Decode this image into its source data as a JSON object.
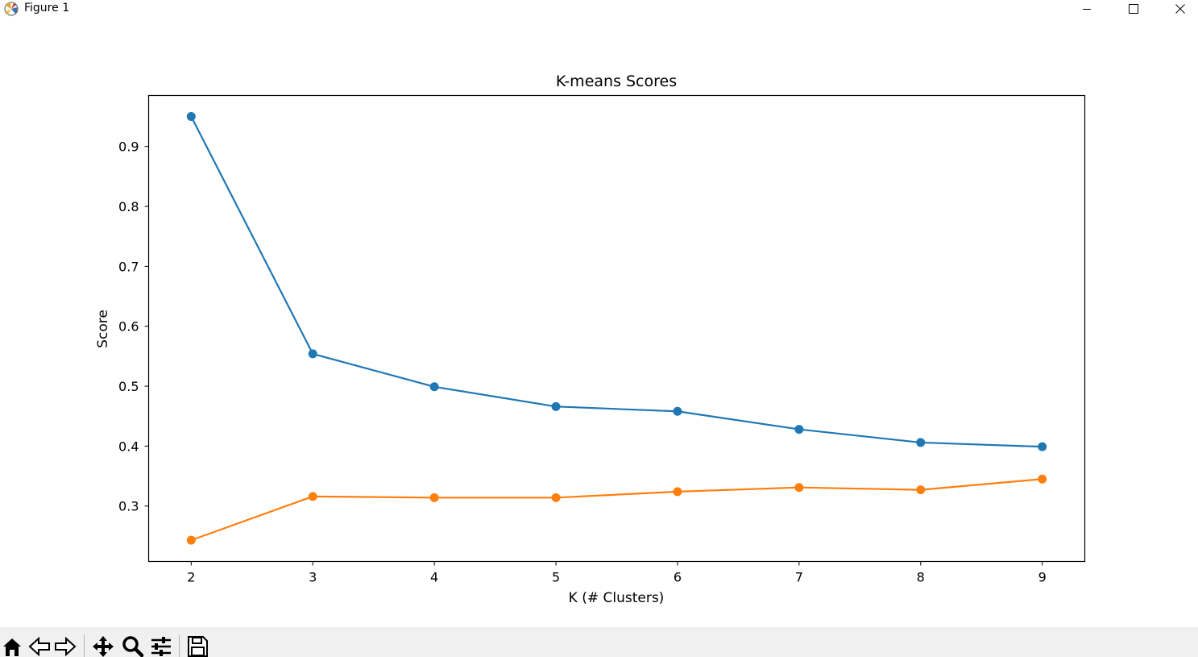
{
  "window": {
    "title": "Figure 1",
    "icon": "matplotlib-icon",
    "controls": [
      "minimize-icon",
      "maximize-icon",
      "close-icon"
    ]
  },
  "toolbar": {
    "buttons": [
      {
        "name": "home-icon"
      },
      {
        "name": "back-arrow-icon"
      },
      {
        "name": "forward-arrow-icon"
      },
      {
        "name": "pan-icon"
      },
      {
        "name": "zoom-icon"
      },
      {
        "name": "configure-subplots-icon"
      },
      {
        "name": "save-icon"
      }
    ]
  },
  "chart_data": {
    "type": "line",
    "title": "K-means Scores",
    "xlabel": "K (# Clusters)",
    "ylabel": "Score",
    "x": [
      2,
      3,
      4,
      5,
      6,
      7,
      8,
      9
    ],
    "xticks": [
      "2",
      "3",
      "4",
      "5",
      "6",
      "7",
      "8",
      "9"
    ],
    "yticks": [
      "0.3",
      "0.4",
      "0.5",
      "0.6",
      "0.7",
      "0.8",
      "0.9"
    ],
    "xlim": [
      1.65,
      9.35
    ],
    "ylim": [
      0.2075,
      0.985
    ],
    "grid": false,
    "legend": false,
    "series": [
      {
        "color": "#1f77b4",
        "marker": "circle",
        "values": [
          0.95,
          0.554,
          0.499,
          0.466,
          0.458,
          0.428,
          0.406,
          0.399
        ]
      },
      {
        "color": "#ff7f0e",
        "marker": "circle",
        "values": [
          0.243,
          0.316,
          0.314,
          0.314,
          0.324,
          0.331,
          0.327,
          0.345
        ]
      }
    ]
  }
}
